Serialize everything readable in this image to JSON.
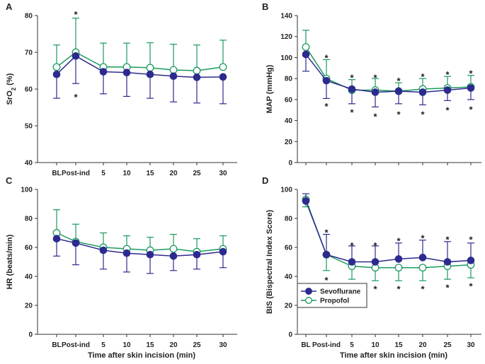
{
  "chart_data": [
    {
      "panel": "A",
      "type": "line",
      "ylabel_parts": [
        "SrO",
        "2",
        " (%)"
      ],
      "ylim": [
        40,
        80
      ],
      "yticks": [
        40,
        50,
        60,
        70,
        80
      ],
      "categories": [
        "BL",
        "Post-ind",
        "5",
        "10",
        "15",
        "20",
        "25",
        "30"
      ],
      "show_category_labels": true,
      "xlabel": "",
      "series": [
        {
          "name": "Sevoflurane",
          "color": "#2d2a8f",
          "mean": [
            64,
            69,
            64.7,
            64.5,
            64,
            63.5,
            63.2,
            63.3
          ],
          "sd": [
            6.5,
            7.5,
            6.0,
            6.5,
            6.5,
            7.0,
            7.0,
            7.3
          ],
          "sd_dir": "down"
        },
        {
          "name": "Propofol",
          "color": "#1a9a5c",
          "mean": [
            66,
            70,
            66,
            66,
            65.8,
            65.2,
            65,
            66
          ],
          "sd": [
            6.0,
            9.3,
            6.5,
            6.5,
            6.8,
            7.0,
            7.0,
            7.3
          ],
          "sd_dir": "up"
        }
      ],
      "significance": [
        {
          "category": "Post-ind",
          "y": 81,
          "label": "*"
        },
        {
          "category": "Post-ind",
          "y": 58.5,
          "label": "*"
        }
      ]
    },
    {
      "panel": "B",
      "type": "line",
      "ylabel": "MAP (mmHg)",
      "ylim": [
        0,
        140
      ],
      "yticks": [
        0,
        20,
        40,
        60,
        80,
        100,
        120,
        140
      ],
      "categories": [
        "BL",
        "Post-ind",
        "5",
        "10",
        "15",
        "20",
        "25",
        "30"
      ],
      "show_category_labels": false,
      "xlabel": "",
      "series": [
        {
          "name": "Sevoflurane",
          "color": "#2d2a8f",
          "mean": [
            103,
            78,
            70,
            67,
            68,
            67,
            69,
            71
          ],
          "sd": [
            16,
            17,
            14,
            14,
            12,
            12,
            10,
            11
          ],
          "sd_dir": "down"
        },
        {
          "name": "Propofol",
          "color": "#1a9a5c",
          "mean": [
            110,
            80,
            69,
            69,
            68,
            70,
            71,
            72
          ],
          "sd": [
            16,
            18,
            10,
            11,
            8,
            10,
            11,
            11
          ],
          "sd_dir": "up"
        }
      ],
      "significance": [
        {
          "category": "Post-ind",
          "y": 102,
          "label": "*"
        },
        {
          "category": "Post-ind",
          "y": 56,
          "label": "*"
        },
        {
          "category": "5",
          "y": 83,
          "label": "*"
        },
        {
          "category": "5",
          "y": 50,
          "label": "*"
        },
        {
          "category": "10",
          "y": 83,
          "label": "*"
        },
        {
          "category": "10",
          "y": 46,
          "label": "*"
        },
        {
          "category": "15",
          "y": 80,
          "label": "*"
        },
        {
          "category": "15",
          "y": 48,
          "label": "*"
        },
        {
          "category": "20",
          "y": 84,
          "label": "*"
        },
        {
          "category": "20",
          "y": 48,
          "label": "*"
        },
        {
          "category": "25",
          "y": 86,
          "label": "*"
        },
        {
          "category": "25",
          "y": 52,
          "label": "*"
        },
        {
          "category": "30",
          "y": 87,
          "label": "*"
        },
        {
          "category": "30",
          "y": 53,
          "label": "*"
        }
      ]
    },
    {
      "panel": "C",
      "type": "line",
      "ylabel": "HR (beats/min)",
      "ylim": [
        0,
        100
      ],
      "yticks": [
        0,
        20,
        40,
        60,
        80,
        100
      ],
      "categories": [
        "BL",
        "Post-ind",
        "5",
        "10",
        "15",
        "20",
        "25",
        "30"
      ],
      "show_category_labels": true,
      "xlabel": "Time after skin incision (min)",
      "series": [
        {
          "name": "Sevoflurane",
          "color": "#2d2a8f",
          "mean": [
            66,
            63,
            58,
            56,
            55,
            54,
            55,
            57
          ],
          "sd": [
            12,
            15,
            13,
            13,
            13,
            10,
            10,
            11
          ],
          "sd_dir": "down"
        },
        {
          "name": "Propofol",
          "color": "#1a9a5c",
          "mean": [
            70,
            64,
            60,
            59,
            58,
            59,
            57,
            59
          ],
          "sd": [
            16,
            12,
            10,
            9,
            9,
            10,
            9,
            9
          ],
          "sd_dir": "up"
        }
      ],
      "significance": []
    },
    {
      "panel": "D",
      "type": "line",
      "ylabel": "BIS (Bispectral Index Score)",
      "ylim": [
        0,
        100
      ],
      "yticks": [
        0,
        20,
        40,
        60,
        80,
        100
      ],
      "categories": [
        "BL",
        "Post-ind",
        "5",
        "10",
        "15",
        "20",
        "25",
        "30"
      ],
      "show_category_labels": true,
      "xlabel": "Time after skin incision (min)",
      "legend": {
        "position": "bottom-left",
        "entries": [
          "Sevoflurane",
          "Propofol"
        ]
      },
      "series": [
        {
          "name": "Sevoflurane",
          "color": "#2d2a8f",
          "mean": [
            92,
            55,
            50,
            50,
            52,
            53,
            50,
            51
          ],
          "sd": [
            5,
            14,
            11,
            11,
            11,
            12,
            14,
            12
          ],
          "sd_dir": "up"
        },
        {
          "name": "Propofol",
          "color": "#1a9a5c",
          "mean": [
            93,
            55,
            47,
            46,
            46,
            46,
            47,
            48
          ],
          "sd": [
            5,
            11,
            9,
            9,
            9,
            9,
            9,
            9
          ],
          "sd_dir": "down"
        }
      ],
      "significance": [
        {
          "category": "Post-ind",
          "y": 72,
          "label": "*"
        },
        {
          "category": "Post-ind",
          "y": 39,
          "label": "*"
        },
        {
          "category": "5",
          "y": 63,
          "label": "*"
        },
        {
          "category": "5",
          "y": 34,
          "label": "*"
        },
        {
          "category": "10",
          "y": 63,
          "label": "*"
        },
        {
          "category": "10",
          "y": 33,
          "label": "*"
        },
        {
          "category": "15",
          "y": 66,
          "label": "*"
        },
        {
          "category": "15",
          "y": 33,
          "label": "*"
        },
        {
          "category": "20",
          "y": 68,
          "label": "*"
        },
        {
          "category": "20",
          "y": 33,
          "label": "*"
        },
        {
          "category": "25",
          "y": 67,
          "label": "*"
        },
        {
          "category": "25",
          "y": 34,
          "label": "*"
        },
        {
          "category": "30",
          "y": 67,
          "label": "*"
        },
        {
          "category": "30",
          "y": 35,
          "label": "*"
        }
      ]
    }
  ]
}
